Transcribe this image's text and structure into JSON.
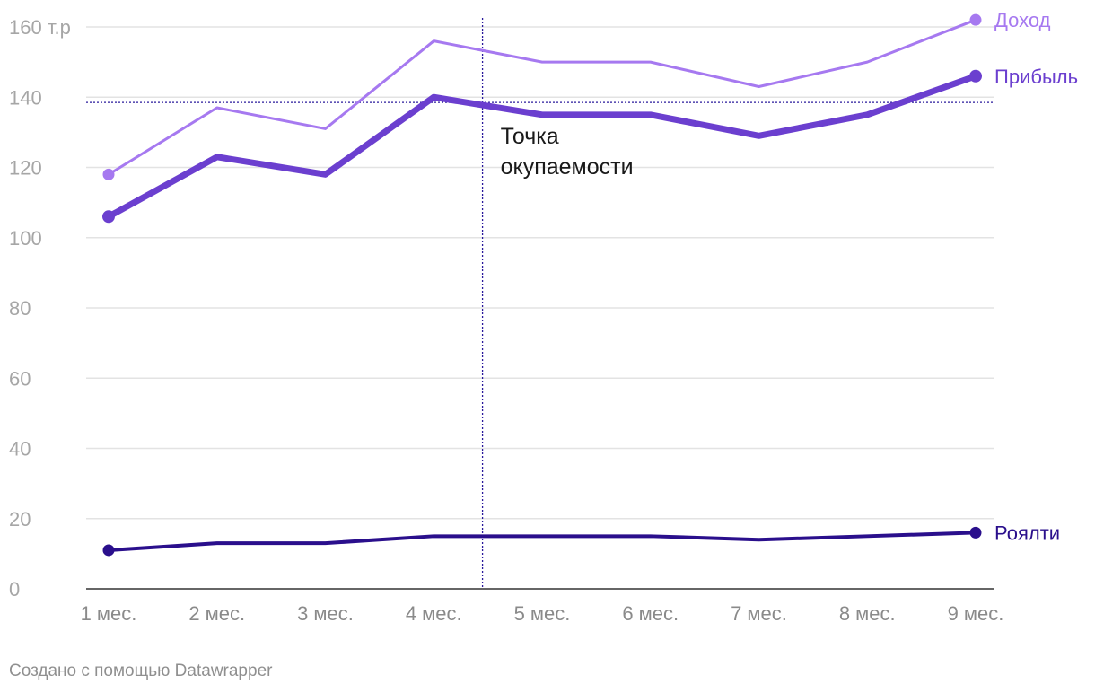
{
  "chart_data": {
    "type": "line",
    "categories": [
      "1 мес.",
      "2 мес.",
      "3 мес.",
      "4 мес.",
      "5 мес.",
      "6 мес.",
      "7 мес.",
      "8 мес.",
      "9 мес."
    ],
    "series": [
      {
        "name": "Доход",
        "values": [
          118,
          137,
          131,
          156,
          150,
          150,
          143,
          150,
          162
        ],
        "color": "#a679f0"
      },
      {
        "name": "Прибыль",
        "values": [
          106,
          123,
          118,
          140,
          135,
          135,
          129,
          135,
          146
        ],
        "color": "#6b3fcf"
      },
      {
        "name": "Роялти",
        "values": [
          11,
          13,
          13,
          15,
          15,
          15,
          14,
          15,
          16
        ],
        "color": "#2a0f8c"
      }
    ],
    "y_ticks": [
      "0",
      "20",
      "40",
      "60",
      "80",
      "100",
      "120",
      "140",
      "160 т.р"
    ],
    "ylim": [
      0,
      160
    ],
    "grid": true,
    "legend": "inline-right",
    "reference_lines": {
      "horizontal_value": 138.5,
      "vertical_between": [
        "4 мес.",
        "5 мес."
      ],
      "vertical_fraction": 0.45
    },
    "annotation": {
      "lines": [
        "Точка",
        "окупаемости"
      ]
    }
  },
  "footer": {
    "credit": "Создано с помощью Datawrapper"
  }
}
